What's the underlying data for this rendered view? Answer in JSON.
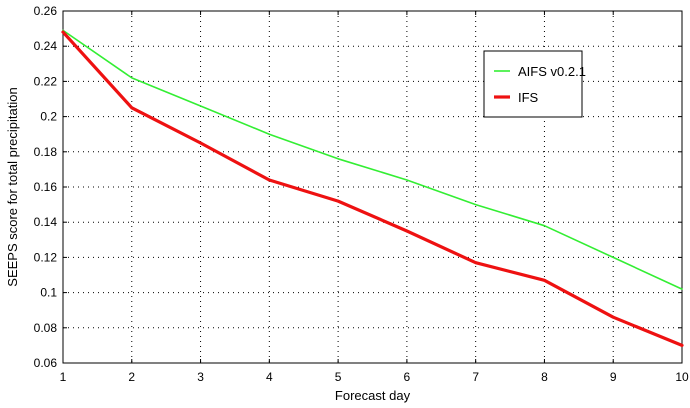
{
  "chart_data": {
    "type": "line",
    "title": "",
    "xlabel": "Forecast day",
    "ylabel": "SEEPS score for total precipitation",
    "xlim": [
      1,
      10
    ],
    "ylim": [
      0.06,
      0.26
    ],
    "x_ticks": [
      1,
      2,
      3,
      4,
      5,
      6,
      7,
      8,
      9,
      10
    ],
    "y_ticks": [
      0.06,
      0.08,
      0.1,
      0.12,
      0.14,
      0.16,
      0.18,
      0.2,
      0.22,
      0.24,
      0.26
    ],
    "y_tick_labels": [
      "0.06",
      "0.08",
      "0.1",
      "0.12",
      "0.14",
      "0.16",
      "0.18",
      "0.2",
      "0.22",
      "0.24",
      "0.26"
    ],
    "x": [
      1,
      2,
      3,
      4,
      5,
      6,
      7,
      8,
      9,
      10
    ],
    "grid": true,
    "legend_position": "top-right",
    "series": [
      {
        "name": "AIFS v0.2.1",
        "color": "#33ee33",
        "values": [
          0.249,
          0.222,
          0.206,
          0.19,
          0.176,
          0.164,
          0.15,
          0.138,
          0.12,
          0.102
        ]
      },
      {
        "name": "IFS",
        "color": "#ee1111",
        "values": [
          0.248,
          0.205,
          0.185,
          0.164,
          0.152,
          0.135,
          0.117,
          0.107,
          0.086,
          0.07
        ]
      }
    ]
  }
}
